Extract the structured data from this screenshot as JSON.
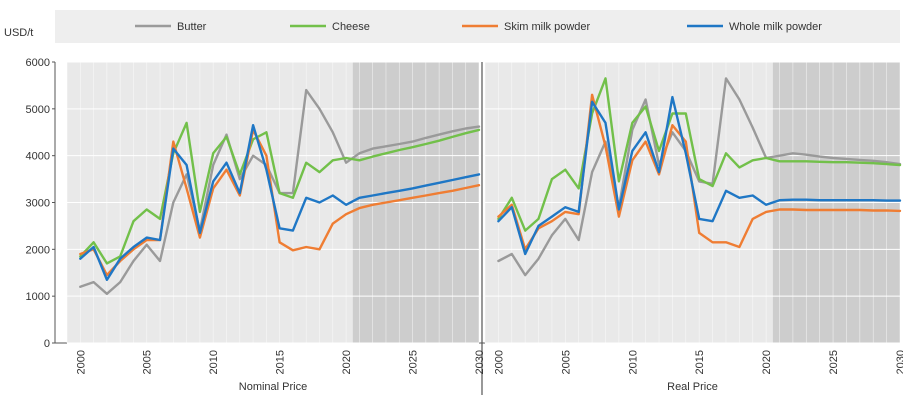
{
  "chart_data": {
    "type": "line",
    "ylabel": "USD/t",
    "ylim": [
      0,
      6000
    ],
    "yticks": [
      "0",
      "1000",
      "2000",
      "3000",
      "4000",
      "5000",
      "6000"
    ],
    "xticks": [
      "2000",
      "2005",
      "2010",
      "2015",
      "2020",
      "2025",
      "2030"
    ],
    "xlim": [
      1999,
      2030
    ],
    "projection_start": 2021,
    "grid": true,
    "legend_position": "top",
    "colors": {
      "Butter": "#9a9a9a",
      "Cheese": "#72c04a",
      "Skim milk powder": "#ef7d33",
      "Whole milk powder": "#1f77c5",
      "band_hist": "#e9e9e9",
      "band_proj": "#cdcdcd",
      "legend_bg": "#eeeeee"
    },
    "panels": [
      {
        "name": "Nominal Price",
        "x": [
          2000,
          2001,
          2002,
          2003,
          2004,
          2005,
          2006,
          2007,
          2008,
          2009,
          2010,
          2011,
          2012,
          2013,
          2014,
          2015,
          2016,
          2017,
          2018,
          2019,
          2020,
          2021,
          2022,
          2023,
          2024,
          2025,
          2026,
          2027,
          2028,
          2029,
          2030
        ],
        "series": [
          {
            "name": "Butter",
            "values": [
              1200,
              1300,
              1050,
              1300,
              1750,
              2100,
              1750,
              3000,
              3600,
              2400,
              3800,
              4450,
              3500,
              4000,
              3800,
              3200,
              3200,
              5400,
              5000,
              4500,
              3850,
              4050,
              4150,
              4200,
              4250,
              4300,
              4380,
              4450,
              4520,
              4580,
              4620
            ]
          },
          {
            "name": "Cheese",
            "values": [
              1850,
              2150,
              1700,
              1850,
              2600,
              2850,
              2650,
              4050,
              4700,
              2800,
              4050,
              4400,
              3600,
              4350,
              4500,
              3200,
              3100,
              3850,
              3650,
              3900,
              3950,
              3900,
              3980,
              4050,
              4120,
              4180,
              4250,
              4320,
              4400,
              4480,
              4550
            ]
          },
          {
            "name": "Skim milk powder",
            "values": [
              1900,
              2000,
              1450,
              1750,
              2000,
              2200,
              2200,
              4300,
              3300,
              2250,
              3300,
              3700,
              3150,
              4550,
              4000,
              2150,
              1980,
              2050,
              2000,
              2550,
              2750,
              2880,
              2950,
              3000,
              3050,
              3100,
              3150,
              3200,
              3250,
              3310,
              3370
            ]
          },
          {
            "name": "Whole milk powder",
            "values": [
              1800,
              2050,
              1350,
              1800,
              2050,
              2250,
              2200,
              4150,
              3800,
              2350,
              3450,
              3850,
              3200,
              4650,
              3700,
              2450,
              2400,
              3100,
              3000,
              3150,
              2950,
              3100,
              3150,
              3200,
              3250,
              3300,
              3360,
              3420,
              3480,
              3540,
              3600
            ]
          }
        ]
      },
      {
        "name": "Real Price",
        "x": [
          2000,
          2001,
          2002,
          2003,
          2004,
          2005,
          2006,
          2007,
          2008,
          2009,
          2010,
          2011,
          2012,
          2013,
          2014,
          2015,
          2016,
          2017,
          2018,
          2019,
          2020,
          2021,
          2022,
          2023,
          2024,
          2025,
          2026,
          2027,
          2028,
          2029,
          2030
        ],
        "series": [
          {
            "name": "Butter",
            "values": [
              1750,
              1900,
              1450,
              1800,
              2300,
              2650,
              2200,
              3650,
              4300,
              2900,
              4550,
              5200,
              3800,
              4500,
              4100,
              3450,
              3400,
              5650,
              5200,
              4600,
              3950,
              4000,
              4050,
              4020,
              3980,
              3950,
              3930,
              3910,
              3890,
              3860,
              3820
            ]
          },
          {
            "name": "Cheese",
            "values": [
              2650,
              3100,
              2400,
              2650,
              3500,
              3700,
              3300,
              4900,
              5650,
              3450,
              4700,
              5050,
              4100,
              4900,
              4900,
              3500,
              3350,
              4050,
              3750,
              3900,
              3950,
              3880,
              3880,
              3880,
              3870,
              3860,
              3860,
              3850,
              3840,
              3820,
              3800
            ]
          },
          {
            "name": "Skim milk powder",
            "values": [
              2700,
              2950,
              2000,
              2450,
              2600,
              2800,
              2750,
              5300,
              4200,
              2700,
              3900,
              4300,
              3600,
              4650,
              4300,
              2350,
              2150,
              2150,
              2050,
              2650,
              2800,
              2850,
              2850,
              2840,
              2840,
              2840,
              2840,
              2840,
              2830,
              2830,
              2820
            ]
          },
          {
            "name": "Whole milk powder",
            "values": [
              2600,
              2900,
              1900,
              2500,
              2700,
              2900,
              2800,
              5150,
              4700,
              2850,
              4100,
              4500,
              3650,
              5250,
              4050,
              2650,
              2600,
              3250,
              3100,
              3150,
              2950,
              3050,
              3060,
              3060,
              3050,
              3050,
              3050,
              3050,
              3050,
              3040,
              3040
            ]
          }
        ]
      }
    ]
  }
}
